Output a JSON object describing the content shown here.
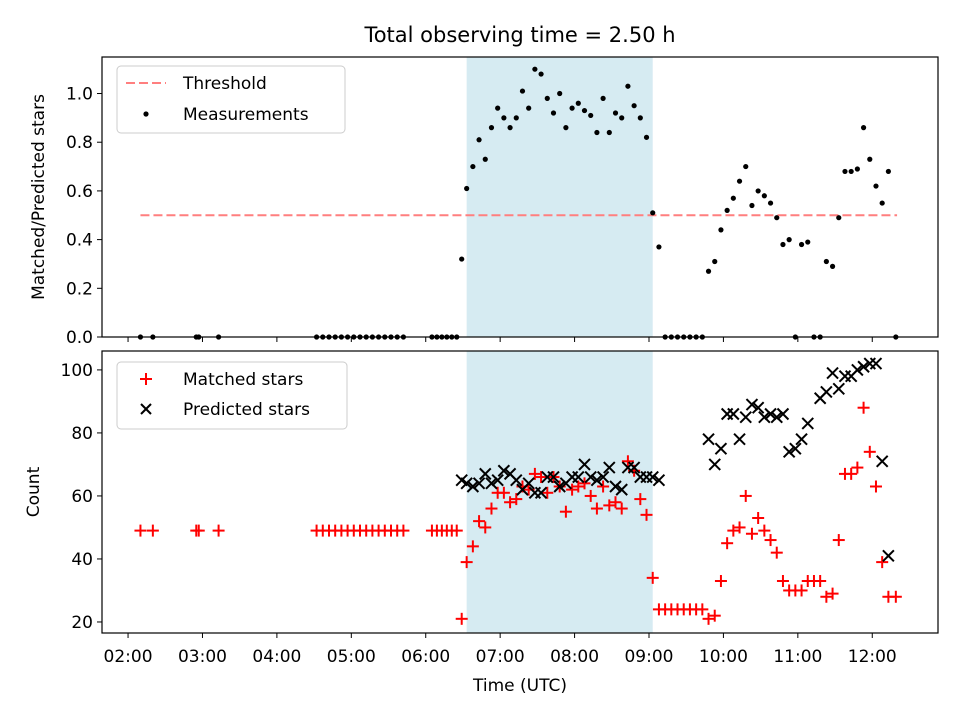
{
  "chart_data": [
    {
      "type": "scatter",
      "title": "Total observing time = 2.50 h",
      "xlabel": "",
      "ylabel": "Matched/Predicted stars",
      "ylim": [
        0,
        1.15
      ],
      "y_ticks": [
        "0.0",
        "0.2",
        "0.4",
        "0.6",
        "0.8",
        "1.0"
      ],
      "legend_position": "top-left",
      "highlight_span": {
        "start": "06:33",
        "end": "09:03",
        "color": "#add8e6"
      },
      "threshold": {
        "name": "Threshold",
        "value": 0.5,
        "x_start": "02:10",
        "x_end": "12:20",
        "color": "#ff7f7f",
        "style": "dashed"
      },
      "series": [
        {
          "name": "Measurements",
          "color": "#000000",
          "marker": "dot",
          "points": [
            [
              "02:10",
              0
            ],
            [
              "02:20",
              0
            ],
            [
              "02:55",
              0
            ],
            [
              "02:57",
              0
            ],
            [
              "03:13",
              0
            ],
            [
              "04:32",
              0
            ],
            [
              "04:37",
              0
            ],
            [
              "04:42",
              0
            ],
            [
              "04:47",
              0
            ],
            [
              "04:52",
              0
            ],
            [
              "04:57",
              0
            ],
            [
              "05:02",
              0
            ],
            [
              "05:07",
              0
            ],
            [
              "05:12",
              0
            ],
            [
              "05:17",
              0
            ],
            [
              "05:22",
              0
            ],
            [
              "05:27",
              0
            ],
            [
              "05:32",
              0
            ],
            [
              "05:37",
              0
            ],
            [
              "05:42",
              0
            ],
            [
              "06:05",
              0
            ],
            [
              "06:09",
              0
            ],
            [
              "06:13",
              0
            ],
            [
              "06:17",
              0
            ],
            [
              "06:21",
              0
            ],
            [
              "06:25",
              0
            ],
            [
              "06:29",
              0.32
            ],
            [
              "06:33",
              0.61
            ],
            [
              "06:38",
              0.7
            ],
            [
              "06:43",
              0.81
            ],
            [
              "06:48",
              0.73
            ],
            [
              "06:53",
              0.86
            ],
            [
              "06:58",
              0.94
            ],
            [
              "07:03",
              0.9
            ],
            [
              "07:08",
              0.86
            ],
            [
              "07:13",
              0.9
            ],
            [
              "07:18",
              1.01
            ],
            [
              "07:23",
              0.94
            ],
            [
              "07:28",
              1.1
            ],
            [
              "07:33",
              1.08
            ],
            [
              "07:38",
              0.98
            ],
            [
              "07:43",
              0.92
            ],
            [
              "07:48",
              1.0
            ],
            [
              "07:53",
              0.86
            ],
            [
              "07:58",
              0.94
            ],
            [
              "08:03",
              0.96
            ],
            [
              "08:08",
              0.93
            ],
            [
              "08:13",
              0.91
            ],
            [
              "08:18",
              0.84
            ],
            [
              "08:23",
              0.98
            ],
            [
              "08:28",
              0.84
            ],
            [
              "08:33",
              0.92
            ],
            [
              "08:38",
              0.9
            ],
            [
              "08:43",
              1.03
            ],
            [
              "08:48",
              0.95
            ],
            [
              "08:53",
              0.9
            ],
            [
              "08:58",
              0.82
            ],
            [
              "09:03",
              0.51
            ],
            [
              "09:08",
              0.37
            ],
            [
              "09:13",
              0
            ],
            [
              "09:18",
              0
            ],
            [
              "09:23",
              0
            ],
            [
              "09:28",
              0
            ],
            [
              "09:33",
              0
            ],
            [
              "09:38",
              0
            ],
            [
              "09:43",
              0
            ],
            [
              "09:48",
              0.27
            ],
            [
              "09:53",
              0.31
            ],
            [
              "09:58",
              0.44
            ],
            [
              "10:03",
              0.52
            ],
            [
              "10:08",
              0.57
            ],
            [
              "10:13",
              0.64
            ],
            [
              "10:18",
              0.7
            ],
            [
              "10:23",
              0.54
            ],
            [
              "10:28",
              0.6
            ],
            [
              "10:33",
              0.58
            ],
            [
              "10:38",
              0.55
            ],
            [
              "10:43",
              0.49
            ],
            [
              "10:48",
              0.38
            ],
            [
              "10:53",
              0.4
            ],
            [
              "10:58",
              0
            ],
            [
              "11:03",
              0.38
            ],
            [
              "11:08",
              0.39
            ],
            [
              "11:13",
              0
            ],
            [
              "11:18",
              0
            ],
            [
              "11:23",
              0.31
            ],
            [
              "11:28",
              0.29
            ],
            [
              "11:33",
              0.49
            ],
            [
              "11:38",
              0.68
            ],
            [
              "11:43",
              0.68
            ],
            [
              "11:48",
              0.69
            ],
            [
              "11:53",
              0.86
            ],
            [
              "11:58",
              0.73
            ],
            [
              "12:03",
              0.62
            ],
            [
              "12:08",
              0.55
            ],
            [
              "12:13",
              0.68
            ],
            [
              "12:19",
              0
            ]
          ]
        }
      ]
    },
    {
      "type": "scatter",
      "title": "",
      "xlabel": "Time (UTC)",
      "ylabel": "Count",
      "ylim": [
        16.5,
        106
      ],
      "y_ticks": [
        "20",
        "40",
        "60",
        "80",
        "100"
      ],
      "x_ticks": [
        "02:00",
        "03:00",
        "04:00",
        "05:00",
        "06:00",
        "07:00",
        "08:00",
        "09:00",
        "10:00",
        "11:00",
        "12:00"
      ],
      "legend_position": "top-left",
      "highlight_span": {
        "start": "06:33",
        "end": "09:03",
        "color": "#add8e6"
      },
      "series": [
        {
          "name": "Matched stars",
          "color": "#ff0000",
          "marker": "plus",
          "points": [
            [
              "02:10",
              49
            ],
            [
              "02:20",
              49
            ],
            [
              "02:55",
              49
            ],
            [
              "02:57",
              49
            ],
            [
              "03:13",
              49
            ],
            [
              "04:32",
              49
            ],
            [
              "04:37",
              49
            ],
            [
              "04:42",
              49
            ],
            [
              "04:47",
              49
            ],
            [
              "04:52",
              49
            ],
            [
              "04:57",
              49
            ],
            [
              "05:02",
              49
            ],
            [
              "05:07",
              49
            ],
            [
              "05:12",
              49
            ],
            [
              "05:17",
              49
            ],
            [
              "05:22",
              49
            ],
            [
              "05:27",
              49
            ],
            [
              "05:32",
              49
            ],
            [
              "05:37",
              49
            ],
            [
              "05:42",
              49
            ],
            [
              "06:05",
              49
            ],
            [
              "06:09",
              49
            ],
            [
              "06:13",
              49
            ],
            [
              "06:17",
              49
            ],
            [
              "06:21",
              49
            ],
            [
              "06:25",
              49
            ],
            [
              "06:29",
              21
            ],
            [
              "06:33",
              39
            ],
            [
              "06:38",
              44
            ],
            [
              "06:43",
              52
            ],
            [
              "06:48",
              50
            ],
            [
              "06:53",
              56
            ],
            [
              "06:58",
              61
            ],
            [
              "07:03",
              61
            ],
            [
              "07:08",
              58
            ],
            [
              "07:13",
              59
            ],
            [
              "07:18",
              63
            ],
            [
              "07:23",
              62
            ],
            [
              "07:28",
              67
            ],
            [
              "07:33",
              66
            ],
            [
              "07:38",
              61
            ],
            [
              "07:43",
              66
            ],
            [
              "07:48",
              63
            ],
            [
              "07:53",
              55
            ],
            [
              "07:58",
              62
            ],
            [
              "08:03",
              63
            ],
            [
              "08:08",
              64
            ],
            [
              "08:13",
              60
            ],
            [
              "08:18",
              56
            ],
            [
              "08:23",
              63
            ],
            [
              "08:28",
              57
            ],
            [
              "08:33",
              58
            ],
            [
              "08:38",
              56
            ],
            [
              "08:43",
              71
            ],
            [
              "08:48",
              68
            ],
            [
              "08:53",
              59
            ],
            [
              "08:58",
              54
            ],
            [
              "09:03",
              34
            ],
            [
              "09:08",
              24
            ],
            [
              "09:13",
              24
            ],
            [
              "09:18",
              24
            ],
            [
              "09:23",
              24
            ],
            [
              "09:28",
              24
            ],
            [
              "09:33",
              24
            ],
            [
              "09:38",
              24
            ],
            [
              "09:43",
              24
            ],
            [
              "09:48",
              21
            ],
            [
              "09:53",
              22
            ],
            [
              "09:58",
              33
            ],
            [
              "10:03",
              45
            ],
            [
              "10:08",
              49
            ],
            [
              "10:13",
              50
            ],
            [
              "10:18",
              60
            ],
            [
              "10:23",
              48
            ],
            [
              "10:28",
              53
            ],
            [
              "10:33",
              49
            ],
            [
              "10:38",
              46
            ],
            [
              "10:43",
              42
            ],
            [
              "10:48",
              33
            ],
            [
              "10:53",
              30
            ],
            [
              "10:58",
              30
            ],
            [
              "11:03",
              30
            ],
            [
              "11:08",
              33
            ],
            [
              "11:13",
              33
            ],
            [
              "11:18",
              33
            ],
            [
              "11:23",
              28
            ],
            [
              "11:28",
              29
            ],
            [
              "11:33",
              46
            ],
            [
              "11:38",
              67
            ],
            [
              "11:43",
              67
            ],
            [
              "11:48",
              69
            ],
            [
              "11:53",
              88
            ],
            [
              "11:58",
              74
            ],
            [
              "12:03",
              63
            ],
            [
              "12:08",
              39
            ],
            [
              "12:13",
              28
            ],
            [
              "12:19",
              28
            ]
          ]
        },
        {
          "name": "Predicted stars",
          "color": "#000000",
          "marker": "x",
          "points": [
            [
              "06:29",
              65
            ],
            [
              "06:33",
              64
            ],
            [
              "06:38",
              63
            ],
            [
              "06:43",
              64
            ],
            [
              "06:48",
              67
            ],
            [
              "06:53",
              64
            ],
            [
              "06:58",
              65
            ],
            [
              "07:03",
              68
            ],
            [
              "07:08",
              67
            ],
            [
              "07:13",
              65
            ],
            [
              "07:18",
              62
            ],
            [
              "07:23",
              64
            ],
            [
              "07:28",
              61
            ],
            [
              "07:33",
              61
            ],
            [
              "07:38",
              66
            ],
            [
              "07:43",
              66
            ],
            [
              "07:48",
              63
            ],
            [
              "07:53",
              64
            ],
            [
              "07:58",
              66
            ],
            [
              "08:03",
              66
            ],
            [
              "08:08",
              70
            ],
            [
              "08:13",
              66
            ],
            [
              "08:18",
              65
            ],
            [
              "08:23",
              66
            ],
            [
              "08:28",
              69
            ],
            [
              "08:33",
              63
            ],
            [
              "08:38",
              62
            ],
            [
              "08:43",
              69
            ],
            [
              "08:48",
              69
            ],
            [
              "08:53",
              66
            ],
            [
              "08:58",
              66
            ],
            [
              "09:03",
              66
            ],
            [
              "09:08",
              65
            ],
            [
              "09:48",
              78
            ],
            [
              "09:53",
              70
            ],
            [
              "09:58",
              75
            ],
            [
              "10:03",
              86
            ],
            [
              "10:08",
              86
            ],
            [
              "10:13",
              78
            ],
            [
              "10:18",
              85
            ],
            [
              "10:23",
              89
            ],
            [
              "10:28",
              88
            ],
            [
              "10:33",
              85
            ],
            [
              "10:38",
              86
            ],
            [
              "10:43",
              85
            ],
            [
              "10:48",
              86
            ],
            [
              "10:53",
              74
            ],
            [
              "10:58",
              75
            ],
            [
              "11:03",
              78
            ],
            [
              "11:08",
              83
            ],
            [
              "11:18",
              91
            ],
            [
              "11:23",
              93
            ],
            [
              "11:28",
              99
            ],
            [
              "11:33",
              94
            ],
            [
              "11:38",
              98
            ],
            [
              "11:43",
              98
            ],
            [
              "11:48",
              100
            ],
            [
              "11:53",
              101
            ],
            [
              "11:58",
              102
            ],
            [
              "12:03",
              102
            ],
            [
              "12:08",
              71
            ],
            [
              "12:13",
              41
            ]
          ]
        }
      ]
    }
  ]
}
